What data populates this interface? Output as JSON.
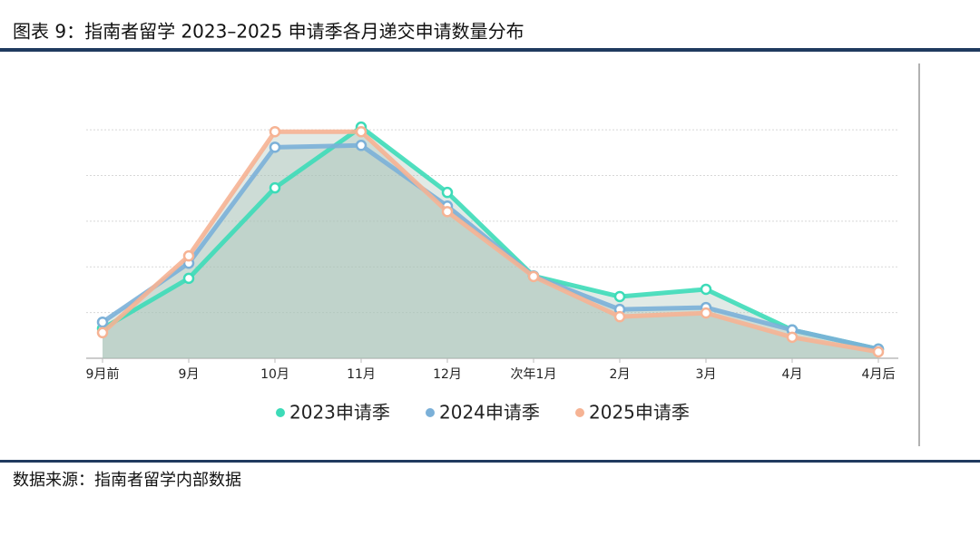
{
  "header": {
    "title": "图表 9：指南者留学 2023–2025 申请季各月递交申请数量分布"
  },
  "chart_data": {
    "type": "line",
    "categories": [
      "9月前",
      "9月",
      "10月",
      "11月",
      "12月",
      "次年1月",
      "2月",
      "3月",
      "4月",
      "4月后"
    ],
    "series": [
      {
        "name": "2023申请季",
        "color": "#3ddbb8",
        "values": [
          6.5,
          17.5,
          37.3,
          50.6,
          36.3,
          18,
          13.5,
          15.1,
          6.2,
          2
        ]
      },
      {
        "name": "2024申请季",
        "color": "#7bb0d8",
        "values": [
          7.9,
          20.8,
          46.2,
          46.6,
          33.3,
          18,
          10.7,
          11.1,
          6.2,
          2
        ]
      },
      {
        "name": "2025申请季",
        "color": "#f6b394",
        "values": [
          5.6,
          22.4,
          49.6,
          49.6,
          32.1,
          17.9,
          9.1,
          9.9,
          4.6,
          1.4
        ]
      }
    ],
    "ylim": [
      0,
      55
    ],
    "yticks": [
      10,
      20,
      30,
      40,
      50
    ],
    "grid": true
  },
  "footer": {
    "source": "数据来源：指南者留学内部数据"
  }
}
